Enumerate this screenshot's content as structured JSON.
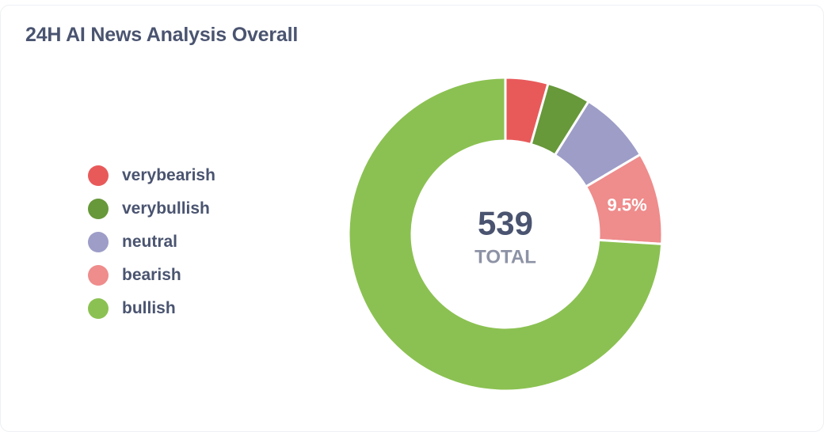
{
  "title": "24H AI News Analysis Overall",
  "chart_data": {
    "type": "pie",
    "donut": true,
    "total": 539,
    "total_value": "539",
    "total_label": "TOTAL",
    "slices": [
      {
        "name": "verybearish",
        "value": 4.4,
        "color": "#e85a5a",
        "label": ""
      },
      {
        "name": "verybullish",
        "value": 4.5,
        "color": "#67983a",
        "label": ""
      },
      {
        "name": "neutral",
        "value": 7.6,
        "color": "#9d9dc8",
        "label": ""
      },
      {
        "name": "bearish",
        "value": 9.5,
        "color": "#ef8c8c",
        "label": "9.5%"
      },
      {
        "name": "bullish",
        "value": 74.0,
        "color": "#8bc152",
        "label": ""
      }
    ],
    "legend_position": "left"
  }
}
